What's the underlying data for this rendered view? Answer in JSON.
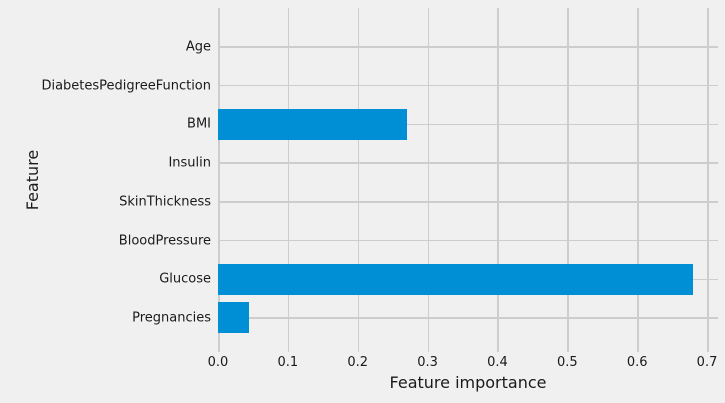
{
  "chart_data": {
    "type": "bar",
    "orientation": "horizontal",
    "title": "",
    "xlabel": "Feature importance",
    "ylabel": "Feature",
    "categories_top_to_bottom": [
      "Age",
      "DiabetesPedigreeFunction",
      "BMI",
      "Insulin",
      "SkinThickness",
      "BloodPressure",
      "Glucose",
      "Pregnancies"
    ],
    "values_top_to_bottom": [
      0,
      0,
      0.27,
      0,
      0,
      0,
      0.68,
      0.045
    ],
    "x_tick_labels": [
      "0.0",
      "0.1",
      "0.2",
      "0.3",
      "0.4",
      "0.5",
      "0.6",
      "0.7"
    ],
    "x_tick_values": [
      0.0,
      0.1,
      0.2,
      0.3,
      0.4,
      0.5,
      0.6,
      0.7
    ],
    "xlim": [
      0,
      0.715
    ],
    "grid": true,
    "legend": "none",
    "bar_color": "#008fd5",
    "background_color": "#f0f0f0",
    "grid_color": "#cdcdcd",
    "text_color": "#1a1a1a"
  }
}
